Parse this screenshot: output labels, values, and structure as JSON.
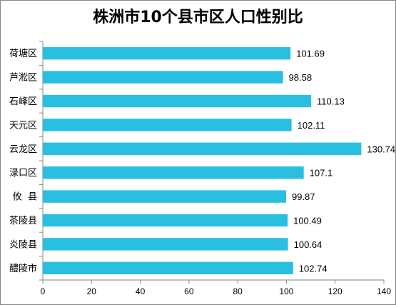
{
  "chart_data": {
    "type": "bar",
    "orientation": "horizontal",
    "title": "株洲市10个县市区人口性别比",
    "categories": [
      "荷塘区",
      "芦淞区",
      "石峰区",
      "天元区",
      "云龙区",
      "渌口区",
      "攸  县",
      "茶陵县",
      "炎陵县",
      "醴陵市"
    ],
    "values": [
      101.69,
      98.58,
      110.13,
      102.11,
      130.74,
      107.1,
      99.87,
      100.49,
      100.64,
      102.74
    ],
    "data_labels": [
      "101.69",
      "98.58",
      "110.13",
      "102.11",
      "130.74",
      "107.1",
      "99.87",
      "100.49",
      "100.64",
      "102.74"
    ],
    "xlim": [
      0,
      140
    ],
    "xticks": [
      "0",
      "20",
      "40",
      "60",
      "80",
      "100",
      "120",
      "140"
    ],
    "xlabel": "",
    "ylabel": "",
    "grid": false,
    "legend": "none",
    "bar_color": "#29BFE0",
    "axis_color": "#868686"
  }
}
